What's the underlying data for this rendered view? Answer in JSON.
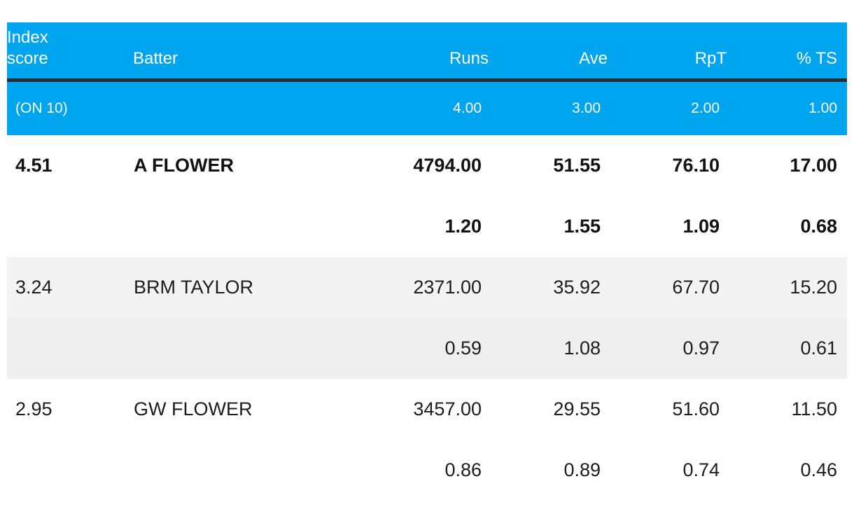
{
  "chart_data": {
    "type": "table",
    "title": "Batting index score table",
    "columns": [
      "Index score",
      "Batter",
      "Runs",
      "Ave",
      "RpT",
      "% TS"
    ],
    "weights_row": [
      "(ON 10)",
      "",
      "4.00",
      "3.00",
      "2.00",
      "1.00"
    ],
    "rows": [
      [
        "4.51",
        "A FLOWER",
        "4794.00",
        "51.55",
        "76.10",
        "17.00"
      ],
      [
        "",
        "",
        "1.20",
        "1.55",
        "1.09",
        "0.68"
      ],
      [
        "3.24",
        "BRM TAYLOR",
        "2371.00",
        "35.92",
        "67.70",
        "15.20"
      ],
      [
        "",
        "",
        "0.59",
        "1.08",
        "0.97",
        "0.61"
      ],
      [
        "2.95",
        "GW FLOWER",
        "3457.00",
        "29.55",
        "51.60",
        "11.50"
      ],
      [
        "",
        "",
        "0.86",
        "0.89",
        "0.74",
        "0.46"
      ]
    ]
  },
  "header": {
    "index_score": "Index score",
    "batter": "Batter",
    "runs": "Runs",
    "ave": "Ave",
    "rpt": "RpT",
    "pct_ts": "% TS"
  },
  "weights": {
    "label": "(ON 10)",
    "runs": "4.00",
    "ave": "3.00",
    "rpt": "2.00",
    "pct_ts": "1.00"
  },
  "players": [
    {
      "index_score": "4.51",
      "name": "A FLOWER",
      "runs": "4794.00",
      "ave": "51.55",
      "rpt": "76.10",
      "pct_ts": "17.00",
      "sub": {
        "runs": "1.20",
        "ave": "1.55",
        "rpt": "1.09",
        "pct_ts": "0.68"
      },
      "emphasis": true,
      "shaded": false
    },
    {
      "index_score": "3.24",
      "name": "BRM TAYLOR",
      "runs": "2371.00",
      "ave": "35.92",
      "rpt": "67.70",
      "pct_ts": "15.20",
      "sub": {
        "runs": "0.59",
        "ave": "1.08",
        "rpt": "0.97",
        "pct_ts": "0.61"
      },
      "emphasis": false,
      "shaded": true
    },
    {
      "index_score": "2.95",
      "name": "GW FLOWER",
      "runs": "3457.00",
      "ave": "29.55",
      "rpt": "51.60",
      "pct_ts": "11.50",
      "sub": {
        "runs": "0.86",
        "ave": "0.89",
        "rpt": "0.74",
        "pct_ts": "0.46"
      },
      "emphasis": false,
      "shaded": false
    }
  ],
  "colors": {
    "header_bg": "#00a5f0",
    "header_text": "#ffffff",
    "divider": "#282c2e",
    "shaded_main": "#f3f3f3",
    "shaded_sub": "#efefef",
    "body_text": "#1c1c1c"
  }
}
